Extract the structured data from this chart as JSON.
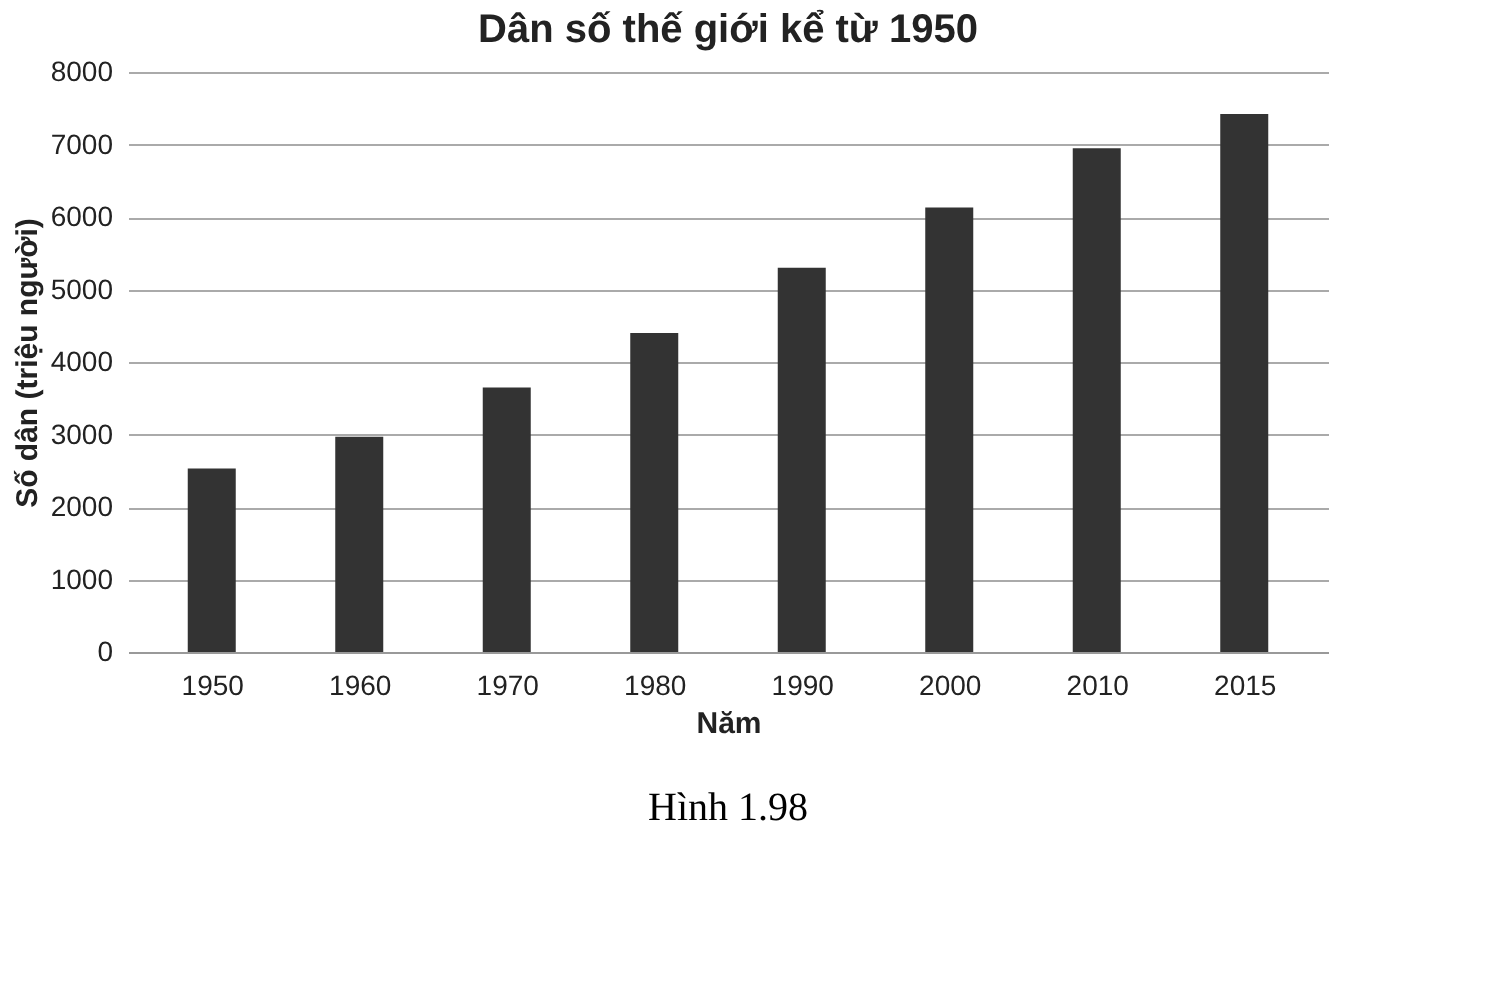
{
  "chart_data": {
    "type": "bar",
    "title": "Dân số thế giới kể từ 1950",
    "xlabel": "Năm",
    "ylabel": "Số dân (triệu người)",
    "categories": [
      "1950",
      "1960",
      "1970",
      "1980",
      "1990",
      "2000",
      "2010",
      "2015"
    ],
    "values": [
      2530,
      2970,
      3650,
      4400,
      5300,
      6130,
      6950,
      7420
    ],
    "color": "#333333",
    "ylim": [
      0,
      8000
    ],
    "yticks": [
      0,
      1000,
      2000,
      3000,
      4000,
      5000,
      6000,
      7000,
      8000
    ],
    "grid": "y",
    "annotations": [
      "Hình 1.98"
    ]
  }
}
